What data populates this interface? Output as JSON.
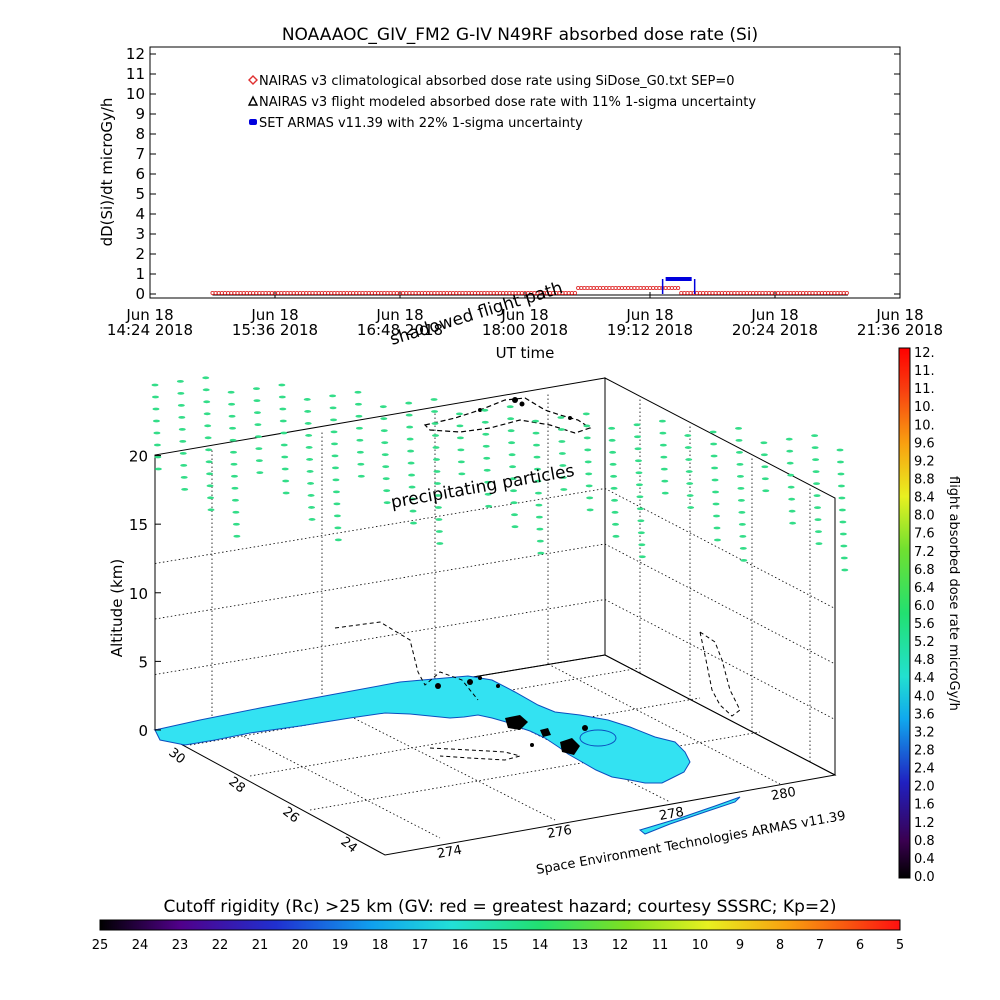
{
  "title": "NOAAAOC_GIV_FM2 G-IV   N49RF  absorbed dose rate (Si)",
  "chart_data": [
    {
      "type": "scatter",
      "ylabel": "dD(Si)/dt microGy/h",
      "xlabel": "UT time",
      "ylim": [
        0,
        12
      ],
      "yticks": [
        "0",
        "1",
        "2",
        "3",
        "4",
        "5",
        "6",
        "7",
        "8",
        "9",
        "10",
        "11",
        "12"
      ],
      "xticks": [
        {
          "top": "Jun 18",
          "bottom": "14:24 2018"
        },
        {
          "top": "Jun 18",
          "bottom": "15:36 2018"
        },
        {
          "top": "Jun 18",
          "bottom": "16:48 2018"
        },
        {
          "top": "Jun 18",
          "bottom": "18:00 2018"
        },
        {
          "top": "Jun 18",
          "bottom": "19:12 2018"
        },
        {
          "top": "Jun 18",
          "bottom": "20:24 2018"
        },
        {
          "top": "Jun 18",
          "bottom": "21:36 2018"
        }
      ],
      "x_range_hours": [
        14.4,
        21.6
      ],
      "legend": [
        {
          "label": "NAIRAS v3 climatological absorbed dose rate using SiDose_G0.txt SEP=0",
          "color": "#e03030",
          "marker": "diamond"
        },
        {
          "label": "NAIRAS v3 flight modeled absorbed dose rate with 11% 1-sigma uncertainty",
          "color": "#000000",
          "marker": "triangle"
        },
        {
          "label": "SET ARMAS v11.39 with 22% 1-sigma uncertainty",
          "color": "#0000dd",
          "marker": "circle"
        }
      ],
      "series": [
        {
          "name": "NAIRAS v3 climatological absorbed dose rate using SiDose_G0.txt SEP=0",
          "x_hours": [
            15.0,
            19.4
          ],
          "y_baseline": 0.05,
          "hump": {
            "x_hours": [
              18.5,
              19.5
            ],
            "y": 0.3
          }
        },
        {
          "name": "NAIRAS v3 flight modeled absorbed dose rate with 11% 1-sigma uncertainty",
          "x_hours": [
            15.0,
            21.1
          ],
          "y": 0.0
        },
        {
          "name": "SET ARMAS v11.39 with 22% 1-sigma uncertainty",
          "x_hours": [
            19.35,
            19.6
          ],
          "y": 0.75
        }
      ]
    },
    {
      "type": "scatter",
      "ylabel": "Altitude (km)",
      "zticks": [
        "0",
        "5",
        "10",
        "15",
        "20"
      ],
      "lat_ticks": [
        "24",
        "26",
        "28",
        "30"
      ],
      "lon_ticks": [
        "274",
        "276",
        "278",
        "280"
      ],
      "annotations": [
        "shadowed flight path",
        "precipitating particles"
      ],
      "footer": "Space Environment Technologies ARMAS v11.39"
    }
  ],
  "dose_colorbar": {
    "label": "flight absorbed dose rate microGy/h",
    "ticks": [
      "12.",
      "11.",
      "11.",
      "10.",
      "10.",
      "9.6",
      "9.2",
      "8.8",
      "8.4",
      "8.0",
      "7.6",
      "7.2",
      "6.8",
      "6.4",
      "6.0",
      "5.6",
      "5.2",
      "4.8",
      "4.4",
      "4.0",
      "3.6",
      "3.2",
      "2.8",
      "2.4",
      "2.0",
      "1.6",
      "1.2",
      "0.8",
      "0.4",
      "0.0"
    ]
  },
  "rigidity_colorbar": {
    "title": "Cutoff rigidity (Rc) >25 km (GV: red = greatest hazard; courtesy SSSRC; Kp=2)",
    "ticks": [
      "25",
      "24",
      "23",
      "22",
      "21",
      "20",
      "19",
      "18",
      "17",
      "16",
      "15",
      "14",
      "13",
      "12",
      "11",
      "10",
      "9",
      "8",
      "7",
      "6",
      "5"
    ]
  },
  "colors": {
    "land": "#33e2f2",
    "particles": "#33dd88",
    "sea_grid": "#000000"
  }
}
